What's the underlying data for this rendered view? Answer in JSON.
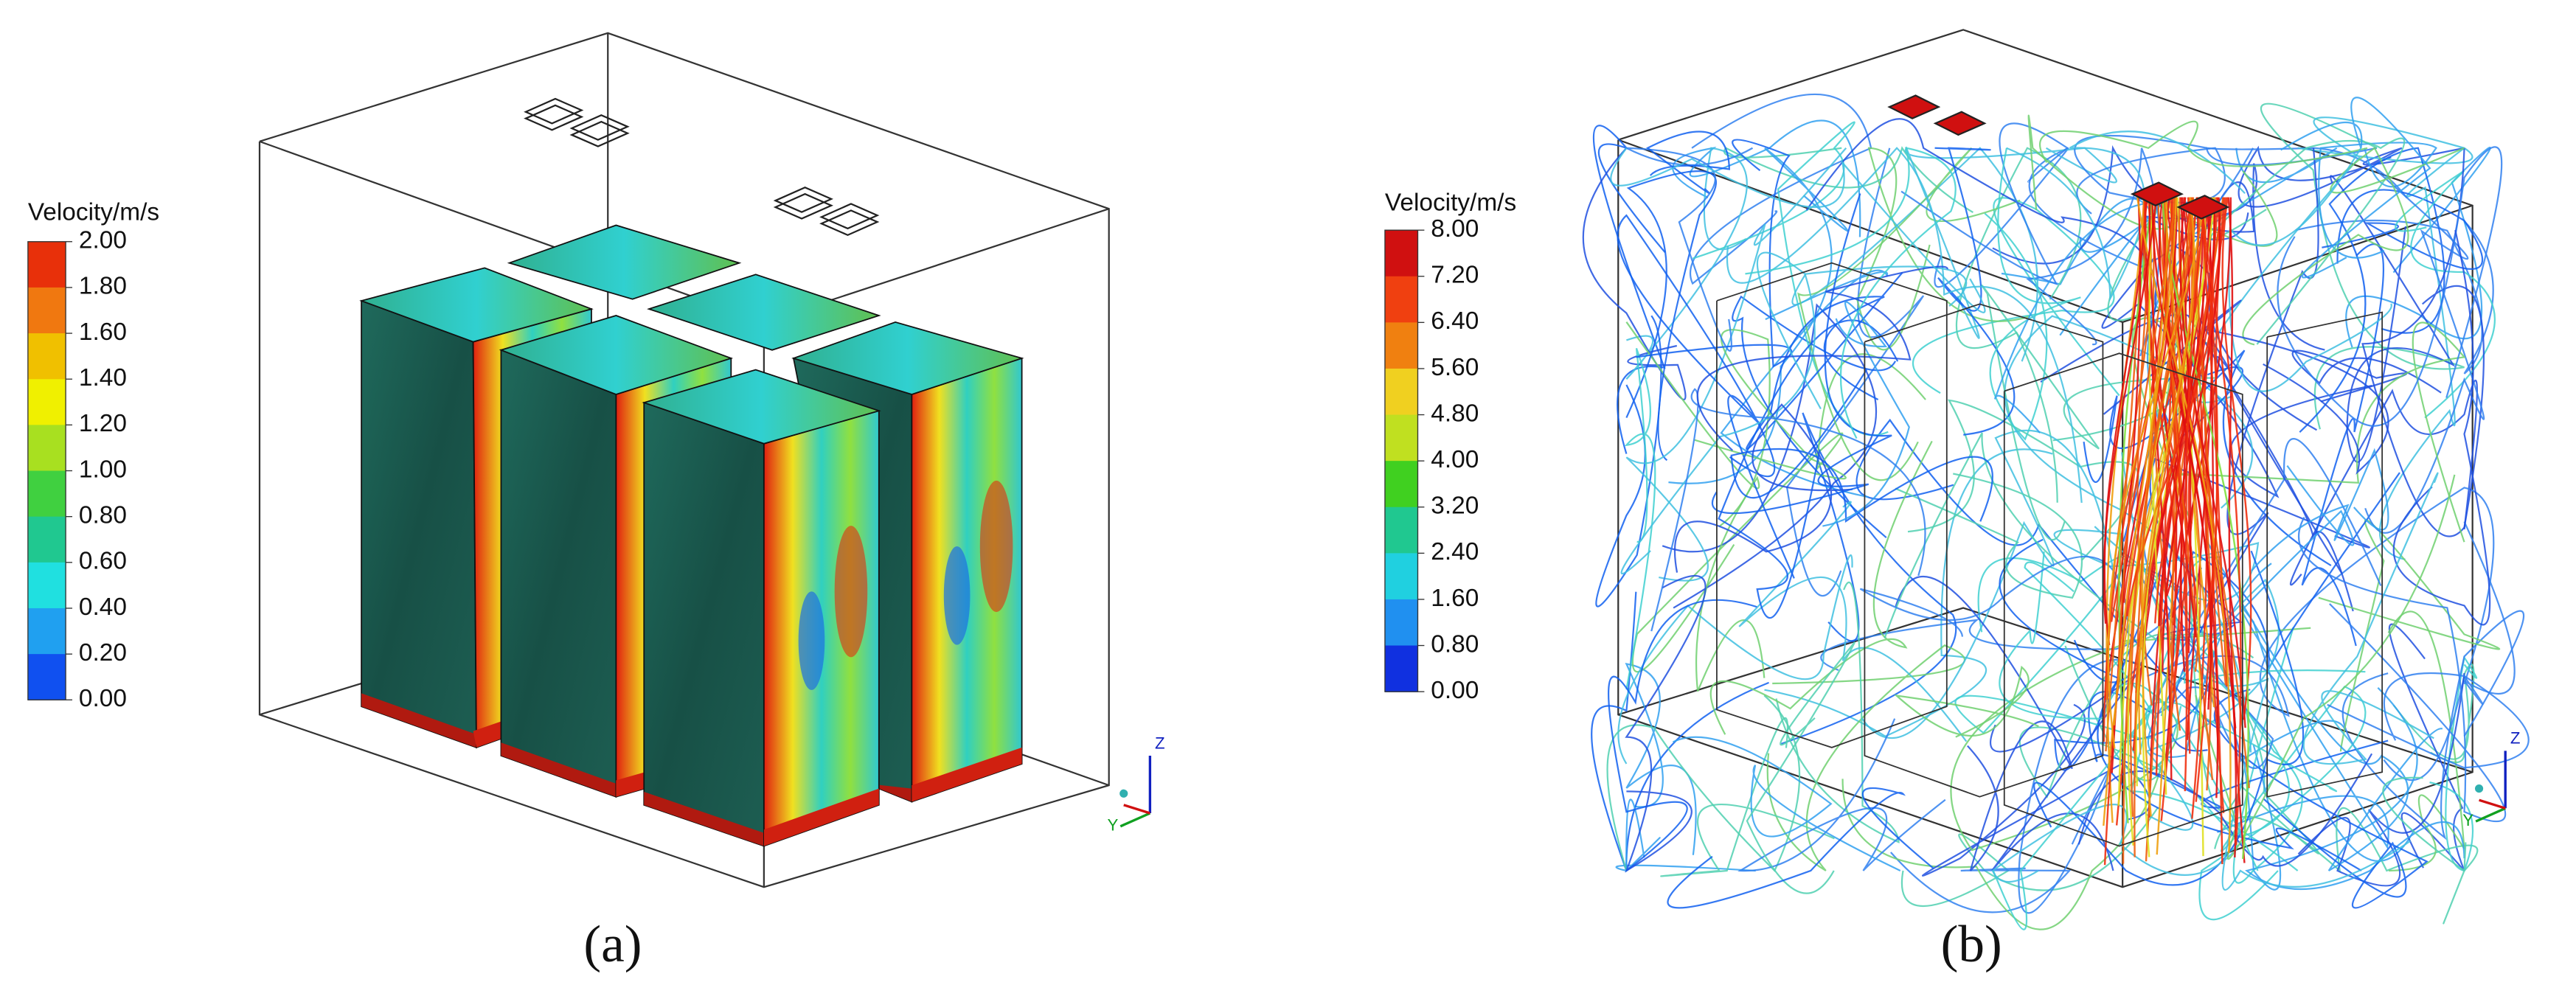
{
  "panels": [
    {
      "legend_title": "Velocity/m/s",
      "legend_labels": [
        "2.00",
        "1.80",
        "1.60",
        "1.40",
        "1.20",
        "1.00",
        "0.80",
        "0.60",
        "0.40",
        "0.20",
        "0.00"
      ],
      "axis_labels": [
        "Z",
        "Y"
      ],
      "caption": "(a)"
    },
    {
      "legend_title": "Velocity/m/s",
      "legend_labels": [
        "8.00",
        "7.20",
        "6.40",
        "5.60",
        "4.80",
        "4.00",
        "3.20",
        "2.40",
        "1.60",
        "0.80",
        "0.00"
      ],
      "axis_labels": [
        "Z",
        "Y"
      ],
      "caption": "(b)"
    }
  ]
}
